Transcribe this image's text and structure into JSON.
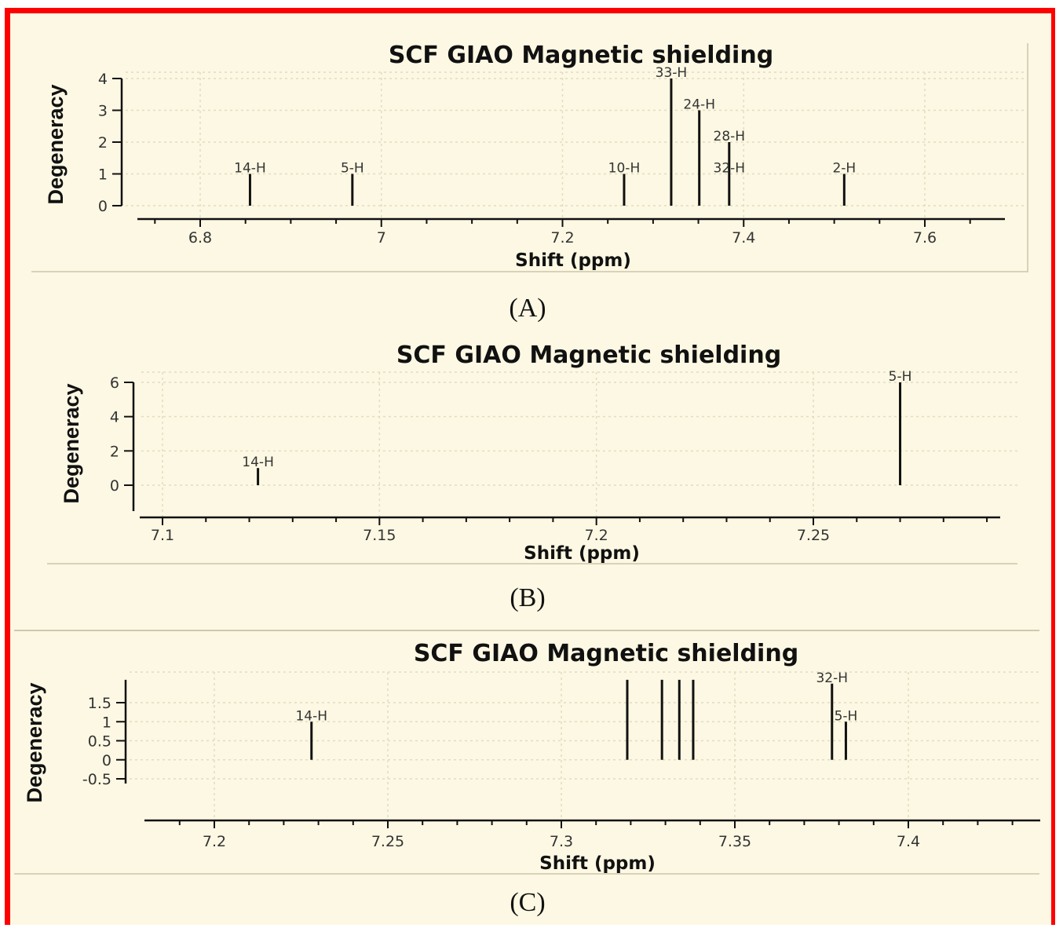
{
  "chart_data": [
    {
      "type": "bar",
      "panel": "(A)",
      "title": "SCF GIAO Magnetic shielding",
      "xlabel": "Shift (ppm)",
      "ylabel": "Degeneracy",
      "xlim": [
        6.74,
        7.7
      ],
      "ylim": [
        0,
        4
      ],
      "x_ticks": [
        "6.8",
        "7",
        "7.2",
        "7.4",
        "7.6"
      ],
      "x_tick_values": [
        6.8,
        7.0,
        7.2,
        7.4,
        7.6
      ],
      "y_ticks": [
        "0",
        "1",
        "2",
        "3",
        "4"
      ],
      "y_tick_values": [
        0,
        1,
        2,
        3,
        4
      ],
      "peaks": [
        {
          "x": 6.855,
          "y": 1,
          "label": "14-H"
        },
        {
          "x": 6.968,
          "y": 1,
          "label": "5-H"
        },
        {
          "x": 7.268,
          "y": 1,
          "label": "10-H"
        },
        {
          "x": 7.32,
          "y": 4,
          "label": "33-H"
        },
        {
          "x": 7.351,
          "y": 3,
          "label": "24-H"
        },
        {
          "x": 7.384,
          "y": 2,
          "label": "28-H"
        },
        {
          "x": 7.384,
          "y": 1,
          "label": "32-H"
        },
        {
          "x": 7.511,
          "y": 1,
          "label": "2-H"
        }
      ],
      "grid": true
    },
    {
      "type": "bar",
      "panel": "(B)",
      "title": "SCF GIAO Magnetic shielding",
      "xlabel": "Shift (ppm)",
      "ylabel": "Degeneracy",
      "xlim": [
        7.095,
        7.29
      ],
      "ylim": [
        -1.5,
        6
      ],
      "x_ticks": [
        "7.1",
        "7.15",
        "7.2",
        "7.25"
      ],
      "x_tick_values": [
        7.1,
        7.15,
        7.2,
        7.25
      ],
      "y_ticks": [
        "0",
        "2",
        "4",
        "6"
      ],
      "y_tick_values": [
        0,
        2,
        4,
        6
      ],
      "peaks": [
        {
          "x": 7.122,
          "y": 1,
          "label": "14-H"
        },
        {
          "x": 7.27,
          "y": 6,
          "label": "5-H"
        }
      ],
      "grid": true
    },
    {
      "type": "bar",
      "panel": "(C)",
      "title": "SCF GIAO Magnetic shielding",
      "xlabel": "Shift (ppm)",
      "ylabel": "Degeneracy",
      "xlim": [
        7.18,
        7.44
      ],
      "ylim": [
        -0.6,
        2.1
      ],
      "x_ticks": [
        "7.2",
        "7.25",
        "7.3",
        "7.35",
        "7.4"
      ],
      "x_tick_values": [
        7.2,
        7.25,
        7.3,
        7.35,
        7.4
      ],
      "y_ticks": [
        "-0.5",
        "0",
        "0.5",
        "1",
        "1.5"
      ],
      "y_tick_values": [
        -0.5,
        0,
        0.5,
        1,
        1.5
      ],
      "peaks": [
        {
          "x": 7.228,
          "y": 1,
          "label": "14-H"
        },
        {
          "x": 7.319,
          "y": 2.1,
          "label": ""
        },
        {
          "x": 7.329,
          "y": 2.1,
          "label": ""
        },
        {
          "x": 7.334,
          "y": 2.1,
          "label": ""
        },
        {
          "x": 7.338,
          "y": 2.1,
          "label": ""
        },
        {
          "x": 7.378,
          "y": 2,
          "label": "32-H"
        },
        {
          "x": 7.382,
          "y": 1,
          "label": "5-H"
        }
      ],
      "grid": true
    }
  ],
  "colors": {
    "frame": "#ff0000",
    "background": "#fdf8e3",
    "peak": "#111111",
    "grid": "#e2dcc0"
  }
}
